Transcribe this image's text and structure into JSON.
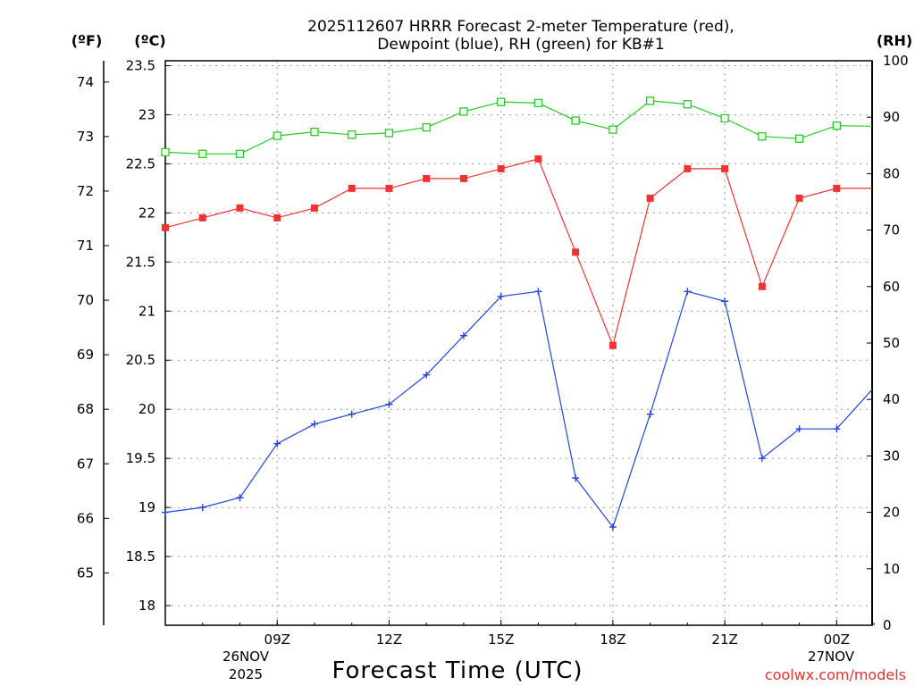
{
  "title_line1": "2025112607 HRRR Forecast 2-meter Temperature (red),",
  "title_line2": "Dewpoint (blue), RH (green) for KB#1",
  "unit_f": "(ºF)",
  "unit_c": "(ºC)",
  "unit_rh": "(RH)",
  "xlabel": "Forecast Time (UTC)",
  "credit": "coolwx.com/models",
  "date_start_day": "26NOV",
  "date_start_year": "2025",
  "date_end_day": "27NOV",
  "colors": {
    "temperature": "#ee3333",
    "dewpoint": "#2244dd",
    "rh": "#22cc22"
  },
  "chart_data": {
    "type": "line",
    "x_hours_utc": [
      6,
      7,
      8,
      9,
      10,
      11,
      12,
      13,
      14,
      15,
      16,
      17,
      18,
      19,
      20,
      21,
      22,
      23,
      24,
      25
    ],
    "x_ticks": [
      {
        "hour": 9,
        "label": "09Z"
      },
      {
        "hour": 12,
        "label": "12Z"
      },
      {
        "hour": 15,
        "label": "15Z"
      },
      {
        "hour": 18,
        "label": "18Z"
      },
      {
        "hour": 21,
        "label": "21Z"
      },
      {
        "hour": 24,
        "label": "00Z"
      }
    ],
    "xlim": [
      6.0,
      24.95
    ],
    "celsius_axis": {
      "ylim": [
        17.8,
        23.55
      ],
      "ticks": [
        "18",
        "18.5",
        "19",
        "19.5",
        "20",
        "20.5",
        "21",
        "21.5",
        "22",
        "22.5",
        "23",
        "23.5"
      ]
    },
    "fahrenheit_axis": {
      "ticks": [
        "65",
        "66",
        "67",
        "68",
        "69",
        "70",
        "71",
        "72",
        "73",
        "74"
      ]
    },
    "rh_axis": {
      "ylim": [
        0,
        100
      ],
      "ticks": [
        "0",
        "10",
        "20",
        "30",
        "40",
        "50",
        "60",
        "70",
        "80",
        "90",
        "100"
      ]
    },
    "series": [
      {
        "name": "Temperature (red)",
        "axis": "celsius",
        "marker": "filled-square",
        "values": [
          21.85,
          21.95,
          22.05,
          21.95,
          22.05,
          22.25,
          22.25,
          22.35,
          22.35,
          22.45,
          22.55,
          21.6,
          20.65,
          22.15,
          22.45,
          22.45,
          21.25,
          22.15,
          22.25,
          22.25
        ]
      },
      {
        "name": "Dewpoint (blue)",
        "axis": "celsius",
        "marker": "plus",
        "values": [
          18.95,
          19.0,
          19.1,
          19.65,
          19.85,
          19.95,
          20.05,
          20.35,
          20.75,
          21.15,
          21.2,
          19.3,
          18.8,
          19.95,
          21.2,
          21.1,
          19.5,
          19.8,
          19.8,
          20.2
        ]
      },
      {
        "name": "RH (green)",
        "axis": "rh",
        "marker": "open-square",
        "values": [
          83.8,
          83.5,
          83.5,
          86.7,
          87.4,
          86.9,
          87.2,
          88.2,
          91.0,
          92.7,
          92.5,
          89.4,
          87.8,
          92.9,
          92.3,
          89.8,
          86.6,
          86.2,
          88.5,
          88.4
        ]
      }
    ]
  }
}
